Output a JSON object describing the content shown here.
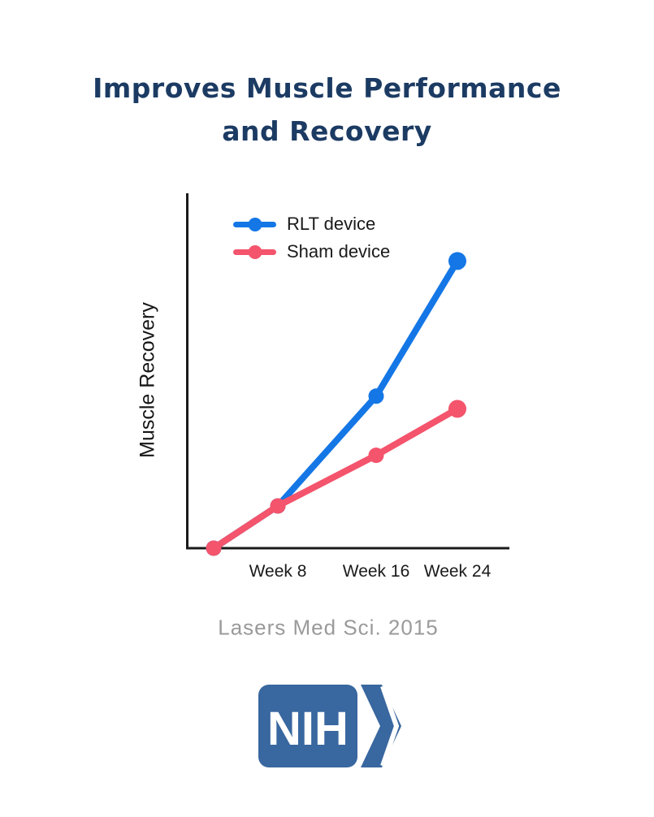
{
  "title": {
    "line1": "Improves Muscle Performance",
    "line2": "and Recovery",
    "color": "#1c3b63"
  },
  "chart_data": {
    "type": "line",
    "title": "",
    "xlabel": "",
    "ylabel": "Muscle Recovery",
    "x_weeks": [
      0,
      8,
      16,
      24
    ],
    "x_tick_labels": [
      "Week 8",
      "Week 16",
      "Week 24"
    ],
    "y_axis_note": "axis unlabeled; values are relative units estimated from point heights (week-8 level = 1.0)",
    "ylim": [
      0,
      8
    ],
    "grid": false,
    "legend_position": "top-left inside plot",
    "series": [
      {
        "name": "RLT device",
        "color": "#1577e6",
        "values": [
          0,
          1.0,
          3.6,
          6.8
        ]
      },
      {
        "name": "Sham device",
        "color": "#f4546c",
        "values": [
          0,
          1.0,
          2.2,
          3.3
        ]
      }
    ],
    "axis_color": "#1a1a1a"
  },
  "citation": {
    "text": "Lasers Med Sci. 2015",
    "color": "#9a9a9a"
  },
  "nih_logo": {
    "text": "NIH",
    "color": "#39679f"
  }
}
